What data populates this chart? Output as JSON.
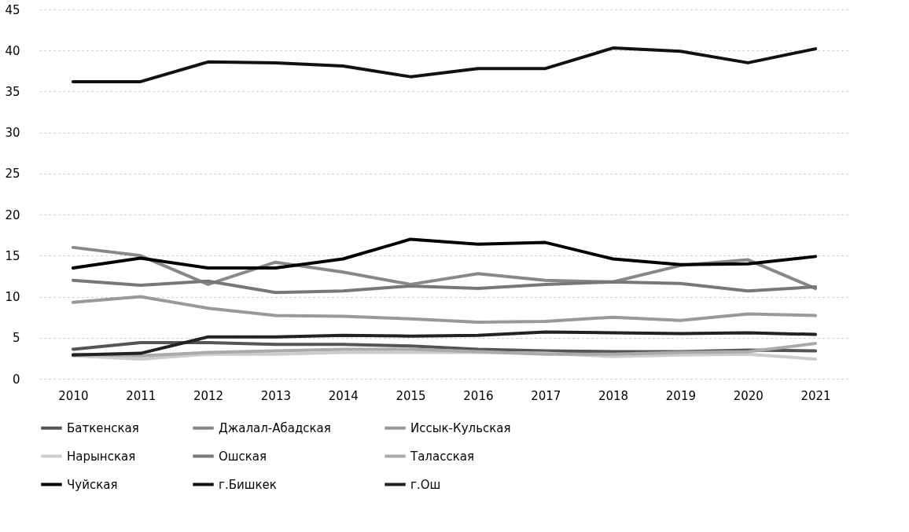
{
  "chart_data": {
    "type": "line",
    "categories": [
      "2010",
      "2011",
      "2012",
      "2013",
      "2014",
      "2015",
      "2016",
      "2017",
      "2018",
      "2019",
      "2020",
      "2021"
    ],
    "ylim": [
      0,
      45
    ],
    "yticks": [
      0,
      5,
      10,
      15,
      20,
      25,
      30,
      35,
      40,
      45
    ],
    "grid": "y",
    "legend": "bottom",
    "line_style": "solid",
    "marker": "none",
    "series": [
      {
        "name": "Баткенская",
        "color": "#555555",
        "values": [
          3.6,
          4.4,
          4.4,
          4.2,
          4.2,
          4.0,
          3.6,
          3.4,
          3.3,
          3.3,
          3.5,
          3.4
        ]
      },
      {
        "name": "Джалал-Абадская",
        "color": "#888888",
        "values": [
          16.0,
          15.0,
          11.5,
          14.2,
          13.0,
          11.5,
          12.8,
          12.0,
          11.8,
          13.8,
          14.5,
          11.0
        ]
      },
      {
        "name": "Иссык-Кульская",
        "color": "#999999",
        "values": [
          9.3,
          10.0,
          8.6,
          7.7,
          7.6,
          7.3,
          6.9,
          7.0,
          7.5,
          7.1,
          7.9,
          7.7
        ]
      },
      {
        "name": "Нарынская",
        "color": "#cccccc",
        "values": [
          2.8,
          2.4,
          3.0,
          3.0,
          3.2,
          3.2,
          3.2,
          3.1,
          2.7,
          2.9,
          3.0,
          2.4
        ]
      },
      {
        "name": "Ошская",
        "color": "#777777",
        "values": [
          12.0,
          11.4,
          11.9,
          10.5,
          10.7,
          11.3,
          11.0,
          11.5,
          11.8,
          11.6,
          10.7,
          11.2
        ]
      },
      {
        "name": "Таласская",
        "color": "#aaaaaa",
        "values": [
          3.0,
          2.8,
          3.2,
          3.4,
          3.6,
          3.6,
          3.3,
          3.0,
          3.0,
          3.2,
          3.3,
          4.3
        ]
      },
      {
        "name": "Чуйская",
        "color": "#000000",
        "values": [
          13.5,
          14.7,
          13.5,
          13.5,
          14.6,
          17.0,
          16.4,
          16.6,
          14.6,
          13.9,
          14.0,
          14.9
        ]
      },
      {
        "name": "г.Бишкек",
        "color": "#111111",
        "values": [
          36.2,
          36.2,
          38.6,
          38.5,
          38.1,
          36.8,
          37.8,
          37.8,
          40.3,
          39.9,
          38.5,
          40.2
        ]
      },
      {
        "name": "г.Ош",
        "color": "#222222",
        "values": [
          2.9,
          3.1,
          5.1,
          5.1,
          5.3,
          5.2,
          5.3,
          5.7,
          5.6,
          5.5,
          5.6,
          5.4
        ]
      }
    ]
  }
}
